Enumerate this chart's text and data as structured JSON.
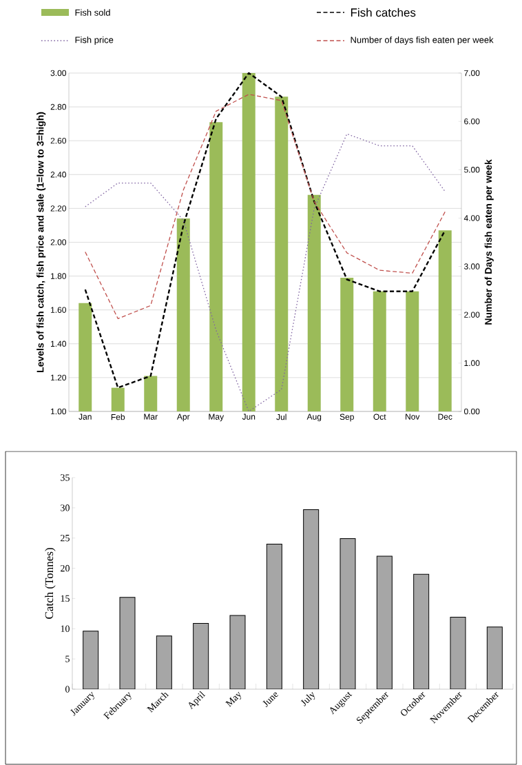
{
  "chart_data": [
    {
      "type": "bar",
      "categories": [
        "Jan",
        "Feb",
        "Mar",
        "Apr",
        "May",
        "Jun",
        "Jul",
        "Aug",
        "Sep",
        "Oct",
        "Nov",
        "Dec"
      ],
      "ylabel": "Levels of fish catch, fish price and sale (1=low to 3=high)",
      "y2label": "Number of Days fish eaten per week",
      "ylim": [
        1,
        3
      ],
      "yticks": [
        {
          "value": 1,
          "label": "1.00"
        },
        {
          "value": 1.2,
          "label": "1.20"
        },
        {
          "value": 1.4,
          "label": "1.40"
        },
        {
          "value": 1.6,
          "label": "1.60"
        },
        {
          "value": 1.8,
          "label": "1.80"
        },
        {
          "value": 2,
          "label": "2.00"
        },
        {
          "value": 2.2,
          "label": "2.20"
        },
        {
          "value": 2.4,
          "label": "2.40"
        },
        {
          "value": 2.6,
          "label": "2.60"
        },
        {
          "value": 2.8,
          "label": "2.80"
        },
        {
          "value": 3,
          "label": "3.00"
        }
      ],
      "y2lim": [
        0,
        7
      ],
      "y2ticks": [
        {
          "value": 0,
          "label": "0.00"
        },
        {
          "value": 1,
          "label": "1.00"
        },
        {
          "value": 2,
          "label": "2.00"
        },
        {
          "value": 3,
          "label": "3.00"
        },
        {
          "value": 4,
          "label": "4.00"
        },
        {
          "value": 5,
          "label": "5.00"
        },
        {
          "value": 6,
          "label": "6.00"
        },
        {
          "value": 7,
          "label": "7.00"
        }
      ],
      "grid": "y",
      "legend": "top",
      "series": [
        {
          "name": "Fish sold",
          "type": "bar",
          "color": "#9bbb59",
          "values": [
            1.64,
            1.14,
            1.21,
            2.14,
            2.71,
            3.0,
            2.86,
            2.28,
            1.79,
            1.71,
            1.71,
            2.07
          ]
        },
        {
          "name": "Fish catches",
          "type": "line",
          "color": "#000000",
          "line_style": "dashed",
          "values": [
            1.72,
            1.14,
            1.21,
            2.1,
            2.73,
            3.0,
            2.86,
            2.24,
            1.78,
            1.71,
            1.71,
            2.07
          ]
        },
        {
          "name": "Fish price",
          "type": "line",
          "color": "#8064a2",
          "line_style": "dotted",
          "values": [
            2.21,
            2.35,
            2.35,
            2.13,
            1.48,
            1.0,
            1.13,
            2.2,
            2.64,
            2.57,
            2.57,
            2.3
          ]
        },
        {
          "name": "Number of days fish eaten per week",
          "type": "line",
          "color": "#c0504d",
          "line_style": "dashed",
          "axis": "y2",
          "values": [
            3.3,
            1.92,
            2.19,
            4.58,
            6.21,
            6.56,
            6.43,
            4.34,
            3.28,
            2.92,
            2.86,
            4.13
          ]
        }
      ]
    },
    {
      "type": "bar",
      "categories": [
        "January",
        "February",
        "March",
        "April",
        "May",
        "June",
        "July",
        "August",
        "September",
        "October",
        "November",
        "December"
      ],
      "ylabel": "Catch (Tonnes)",
      "ylim": [
        0,
        35
      ],
      "yticks": [
        0,
        5,
        10,
        15,
        20,
        25,
        30,
        35
      ],
      "color": "#a6a6a6",
      "values": [
        9.6,
        15.2,
        8.8,
        10.9,
        12.2,
        24.0,
        29.7,
        24.9,
        22.0,
        19.0,
        11.9,
        10.3
      ]
    }
  ]
}
